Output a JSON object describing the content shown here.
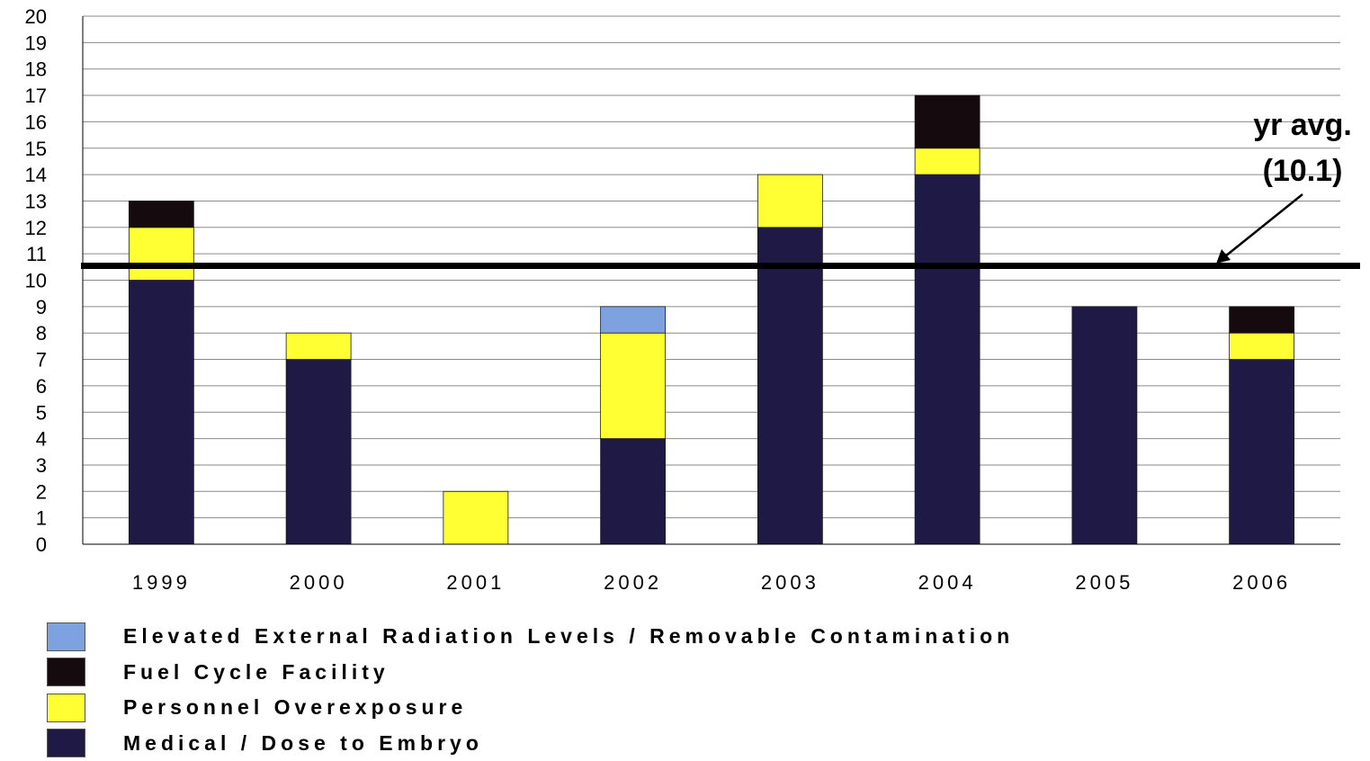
{
  "chart_data": {
    "type": "bar",
    "stacked": true,
    "categories": [
      "1999",
      "2000",
      "2001",
      "2002",
      "2003",
      "2004",
      "2005",
      "2006"
    ],
    "series": [
      {
        "name": "Medical / Dose to Embryo",
        "color": "#1e1a45",
        "values": [
          10,
          7,
          0,
          4,
          12,
          14,
          9,
          7
        ]
      },
      {
        "name": "Personnel Overexposure",
        "color": "#ffff33",
        "values": [
          2,
          1,
          2,
          4,
          2,
          1,
          0,
          1
        ]
      },
      {
        "name": "Fuel Cycle Facility",
        "color": "#150b0f",
        "values": [
          1,
          0,
          0,
          0,
          0,
          2,
          0,
          1
        ]
      },
      {
        "name": "Elevated External Radiation Levels / Removable Contamination",
        "color": "#7ea2e0",
        "values": [
          0,
          0,
          0,
          1,
          0,
          0,
          0,
          0
        ]
      }
    ],
    "ylim": [
      0,
      20
    ],
    "yticks": [
      "0",
      "1",
      "2",
      "3",
      "4",
      "5",
      "6",
      "7",
      "8",
      "9",
      "10",
      "11",
      "12",
      "13",
      "14",
      "15",
      "16",
      "17",
      "18",
      "19",
      "20"
    ],
    "grid": true,
    "legend_position": "bottom",
    "legend_order": [
      3,
      2,
      1,
      0
    ],
    "average_line": {
      "value": 10.1,
      "label_line1": "yr avg.",
      "label_line2": "(10.1)"
    }
  }
}
